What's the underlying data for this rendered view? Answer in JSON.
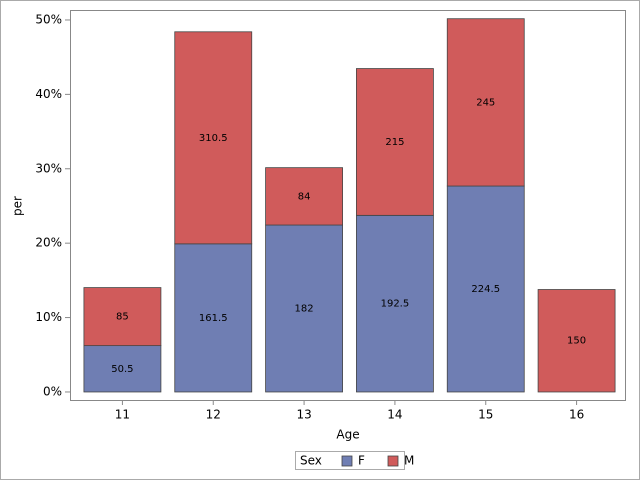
{
  "chart_data": {
    "type": "stacked_bar",
    "x_label": "Age",
    "y_label": "per",
    "categories": [
      "11",
      "12",
      "13",
      "14",
      "15",
      "16"
    ],
    "series": [
      {
        "name": "F",
        "color": "#6f7eb3",
        "values": [
          6.23,
          19.91,
          22.44,
          23.74,
          27.68,
          null
        ],
        "data_labels": [
          50.5,
          161.5,
          182,
          192.5,
          224.5,
          null
        ]
      },
      {
        "name": "M",
        "color": "#d05b5b",
        "values": [
          7.8,
          28.5,
          7.71,
          19.73,
          22.49,
          13.77
        ],
        "data_labels": [
          85,
          310.5,
          84,
          215,
          245,
          150
        ]
      }
    ],
    "legend_title": "Sex",
    "ylim": [
      -1.08,
      51.34
    ],
    "yticks": [
      {
        "value": 0,
        "label": "0%"
      },
      {
        "value": 10,
        "label": "10%"
      },
      {
        "value": 20,
        "label": "20%"
      },
      {
        "value": 30,
        "label": "30%"
      },
      {
        "value": 40,
        "label": "40%"
      },
      {
        "value": 50,
        "label": "50%"
      }
    ]
  }
}
